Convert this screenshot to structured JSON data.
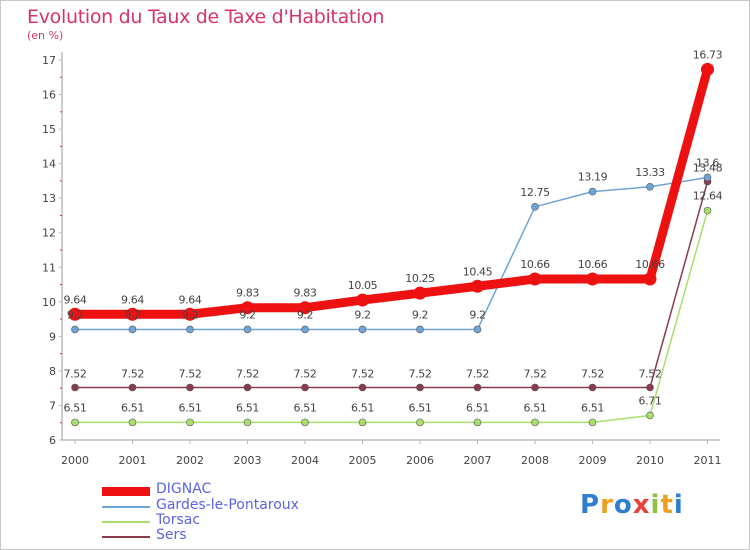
{
  "title": "Evolution du Taux de Taxe d'Habitation",
  "unit_label": "(en %)",
  "logo_text": "Proxiti",
  "chart_data": {
    "type": "line",
    "title": "Evolution du Taux de Taxe d'Habitation",
    "ylabel": "(en %)",
    "xlabel": "",
    "x": [
      2000,
      2001,
      2002,
      2003,
      2004,
      2005,
      2006,
      2007,
      2008,
      2009,
      2010,
      2011
    ],
    "ylim": [
      6,
      17
    ],
    "yticks": [
      6,
      7,
      8,
      9,
      10,
      11,
      12,
      13,
      14,
      15,
      16,
      17
    ],
    "grid": false,
    "legend_position": "bottom-left",
    "series": [
      {
        "name": "DIGNAC",
        "color": "#ee1111",
        "values": [
          9.64,
          9.64,
          9.64,
          9.83,
          9.83,
          10.05,
          10.25,
          10.45,
          10.66,
          10.66,
          10.66,
          16.73
        ],
        "labels": [
          "9.64",
          "9.64",
          "9.64",
          "9.83",
          "9.83",
          "10.05",
          "10.25",
          "10.45",
          "10.66",
          "10.66",
          "10.66",
          "16.73"
        ]
      },
      {
        "name": "Gardes-le-Pontaroux",
        "color": "#6fa4d9",
        "values": [
          9.2,
          9.2,
          9.2,
          9.2,
          9.2,
          9.2,
          9.2,
          9.2,
          12.75,
          13.19,
          13.33,
          13.6
        ],
        "labels": [
          "9.2",
          "9.2",
          "9.2",
          "9.2",
          "9.2",
          "9.2",
          "9.2",
          "9.2",
          "12.75",
          "13.19",
          "13.33",
          "13.6"
        ]
      },
      {
        "name": "Torsac",
        "color": "#a8df6c",
        "values": [
          6.51,
          6.51,
          6.51,
          6.51,
          6.51,
          6.51,
          6.51,
          6.51,
          6.51,
          6.51,
          6.71,
          12.64
        ],
        "labels": [
          "6.51",
          "6.51",
          "6.51",
          "6.51",
          "6.51",
          "6.51",
          "6.51",
          "6.51",
          "6.51",
          "6.51",
          "6.71",
          "12.64"
        ]
      },
      {
        "name": "Sers",
        "color": "#8a3a4a",
        "values": [
          7.52,
          7.52,
          7.52,
          7.52,
          7.52,
          7.52,
          7.52,
          7.52,
          7.52,
          7.52,
          7.52,
          13.48
        ],
        "labels": [
          "7.52",
          "7.52",
          "7.52",
          "7.52",
          "7.52",
          "7.52",
          "7.52",
          "7.52",
          "7.52",
          "7.52",
          "7.52",
          "13.48"
        ]
      }
    ]
  }
}
